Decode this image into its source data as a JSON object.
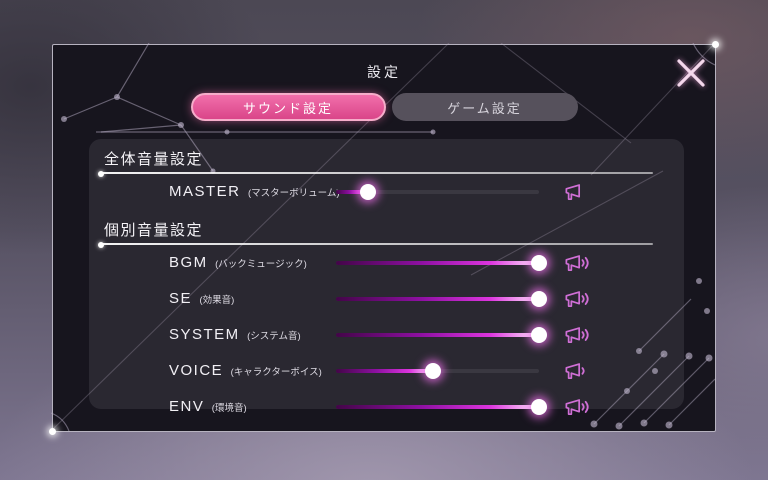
{
  "window": {
    "title": "設定"
  },
  "tabs": {
    "sound": {
      "label": "サウンド設定",
      "active": true
    },
    "game": {
      "label": "ゲーム設定",
      "active": false
    }
  },
  "master_section": {
    "title": "全体音量設定",
    "rows": [
      {
        "name": "MASTER",
        "sub": "(マスターボリューム)",
        "value": 16,
        "waves": 0
      }
    ]
  },
  "individual_section": {
    "title": "個別音量設定",
    "rows": [
      {
        "name": "BGM",
        "sub": "(バックミュージック)",
        "value": 100,
        "waves": 2
      },
      {
        "name": "SE",
        "sub": "(効果音)",
        "value": 100,
        "waves": 2
      },
      {
        "name": "SYSTEM",
        "sub": "(システム音)",
        "value": 100,
        "waves": 2
      },
      {
        "name": "VOICE",
        "sub": "(キャラクターボイス)",
        "value": 48,
        "waves": 1
      },
      {
        "name": "ENV",
        "sub": "(環境音)",
        "value": 100,
        "waves": 2
      }
    ]
  },
  "icons": {
    "close": "close-x",
    "speaker": "megaphone-speaker"
  },
  "colors": {
    "accent_pink": "#ee5f9f",
    "tab_border_pink": "#f6adca",
    "slider_magenta": "#dc35de",
    "icon_magenta": "#d06fd6",
    "panel_dark": "#17151e",
    "inner_panel": "#2c2933"
  }
}
